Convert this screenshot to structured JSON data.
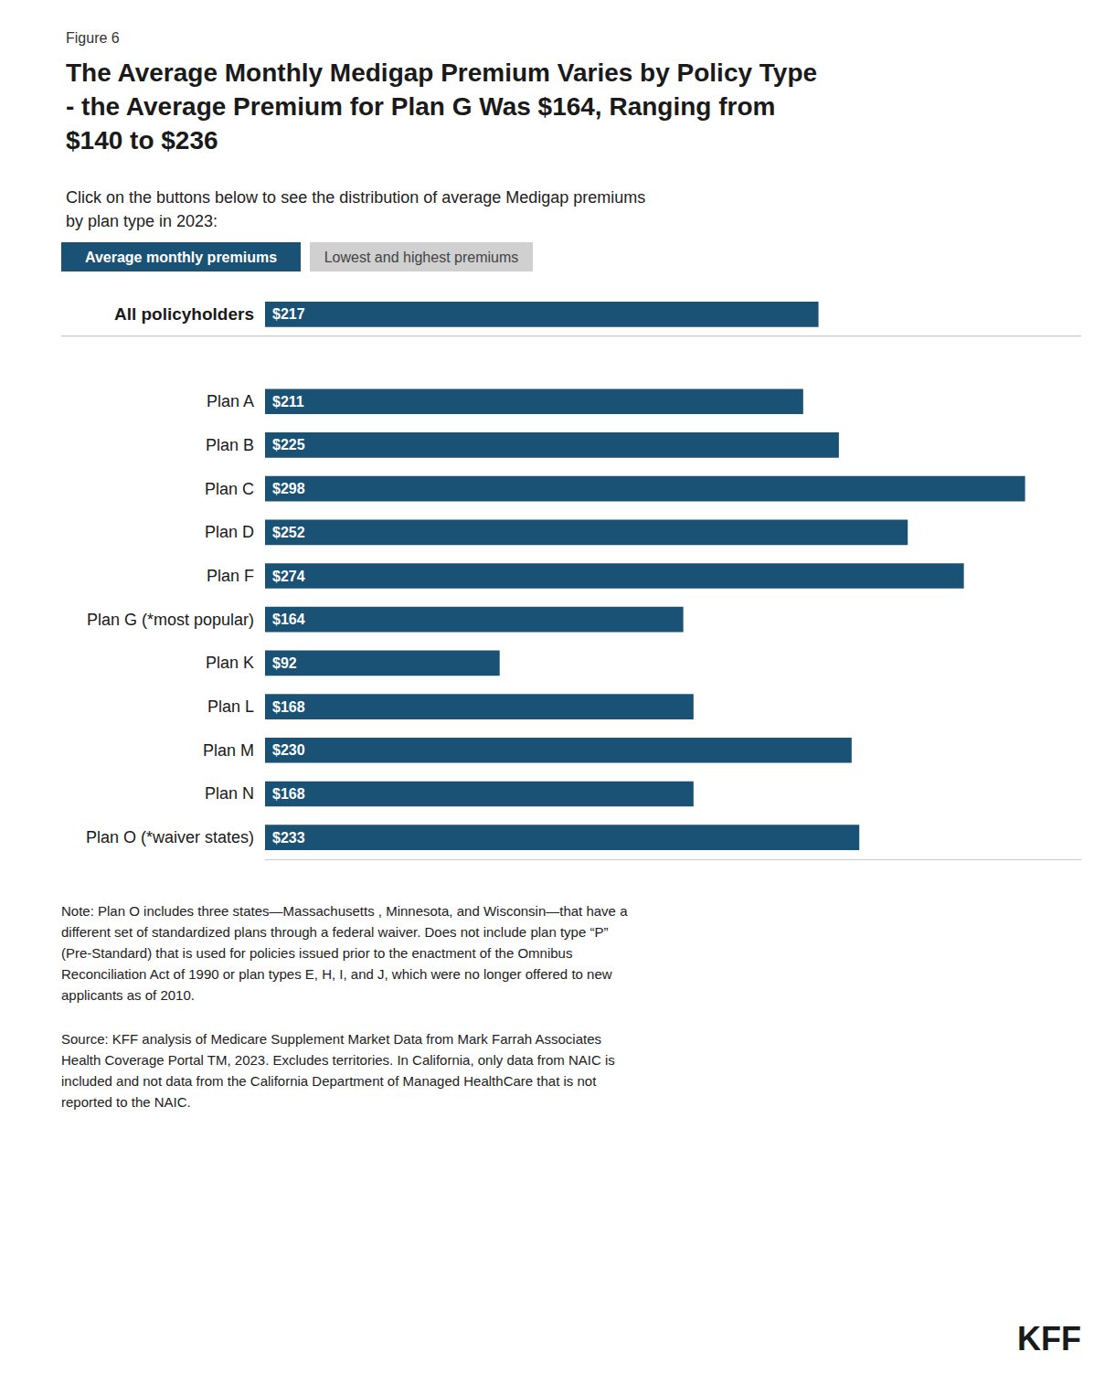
{
  "chart_data": {
    "type": "bar",
    "orientation": "horizontal",
    "figure_label": "Figure 6",
    "title": "The Average Monthly Medigap Premium Varies by Policy Type\n- the Average Premium for Plan G Was $164, Ranging from\n$140 to $236",
    "subtitle": "Click on the buttons below to see the distribution of average Medigap premiums\nby plan type in 2023:",
    "buttons": [
      "Average monthly premiums",
      "Lowest and highest premiums"
    ],
    "categories": [
      "All policyholders",
      null,
      "Plan A",
      "Plan B",
      "Plan C",
      "Plan D",
      "Plan F",
      "Plan G (*most popular)",
      "Plan K",
      "Plan L",
      "Plan M",
      "Plan N",
      "Plan O (*waiver states)"
    ],
    "values": [
      217,
      null,
      211,
      225,
      298,
      252,
      274,
      164,
      92,
      168,
      230,
      168,
      233
    ],
    "value_labels": [
      "$217",
      null,
      "$211",
      "$225",
      "$298",
      "$252",
      "$274",
      "$164",
      "$92",
      "$168",
      "$230",
      "$168",
      "$233"
    ],
    "data_labels": true,
    "color": "#1a5276",
    "xlim": [
      0,
      320
    ],
    "tick_labels": "y",
    "grid": false,
    "notes": "Note: Plan O includes three states—Massachusetts , Minnesota, and Wisconsin—that have a\ndifferent set of standardized plans through a federal waiver. Does not include plan type “P”\n(Pre-Standard) that is used for policies issued prior to the enactment of the Omnibus\nReconciliation Act of 1990 or plan types E, H, I, and J, which were no longer offered to new\napplicants as of 2010.",
    "source": "Source: KFF analysis of Medicare Supplement Market Data from Mark Farrah Associates\nHealth Coverage Portal TM, 2023. Excludes territories. In California, only data from NAIC is\nincluded and not data from the California Department of Managed HealthCare that is not\nreported to the NAIC.",
    "logo": "KFF"
  }
}
